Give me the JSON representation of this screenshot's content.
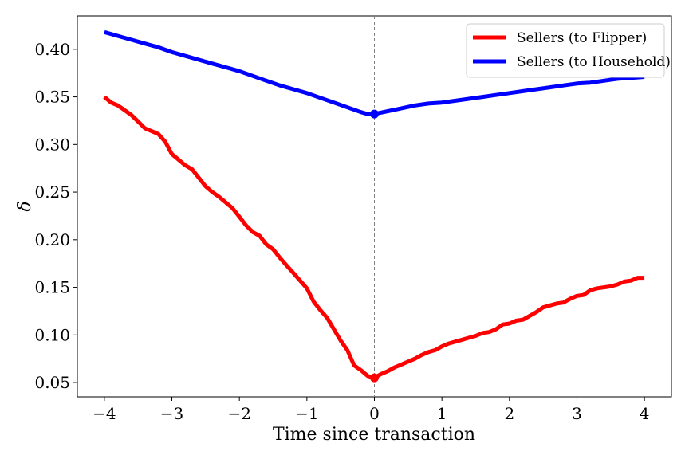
{
  "chart_data": {
    "type": "line",
    "xlabel": "Time since transaction",
    "ylabel": "δ",
    "xlim": [
      -4.4,
      4.4
    ],
    "ylim": [
      0.035,
      0.435
    ],
    "xticks": [
      -4,
      -3,
      -2,
      -1,
      0,
      1,
      2,
      3,
      4
    ],
    "xtick_labels": [
      "−4",
      "−3",
      "−2",
      "−1",
      "0",
      "1",
      "2",
      "3",
      "4"
    ],
    "yticks": [
      0.05,
      0.1,
      0.15,
      0.2,
      0.25,
      0.3,
      0.35,
      0.4
    ],
    "ytick_labels": [
      "0.05",
      "0.10",
      "0.15",
      "0.20",
      "0.25",
      "0.30",
      "0.35",
      "0.40"
    ],
    "vline_x": 0,
    "legend_position": "top-right",
    "series": [
      {
        "name": "Sellers (to Flipper)",
        "color": "#ff0000",
        "marker_x": 0,
        "marker_y": 0.055,
        "x": [
          -4.0,
          -3.9,
          -3.8,
          -3.7,
          -3.6,
          -3.5,
          -3.4,
          -3.3,
          -3.2,
          -3.1,
          -3.0,
          -2.9,
          -2.8,
          -2.7,
          -2.6,
          -2.5,
          -2.4,
          -2.3,
          -2.2,
          -2.1,
          -2.0,
          -1.9,
          -1.8,
          -1.7,
          -1.6,
          -1.5,
          -1.4,
          -1.3,
          -1.2,
          -1.1,
          -1.0,
          -0.9,
          -0.8,
          -0.7,
          -0.6,
          -0.5,
          -0.4,
          -0.3,
          -0.2,
          -0.1,
          0.0,
          0.1,
          0.2,
          0.3,
          0.4,
          0.5,
          0.6,
          0.7,
          0.8,
          0.9,
          1.0,
          1.1,
          1.2,
          1.3,
          1.4,
          1.5,
          1.6,
          1.7,
          1.8,
          1.9,
          2.0,
          2.1,
          2.2,
          2.3,
          2.4,
          2.5,
          2.6,
          2.7,
          2.8,
          2.9,
          3.0,
          3.1,
          3.2,
          3.3,
          3.4,
          3.5,
          3.6,
          3.7,
          3.8,
          3.9,
          4.0
        ],
        "y": [
          0.35,
          0.344,
          0.341,
          0.336,
          0.331,
          0.324,
          0.317,
          0.314,
          0.311,
          0.303,
          0.29,
          0.284,
          0.278,
          0.274,
          0.265,
          0.256,
          0.25,
          0.245,
          0.239,
          0.233,
          0.224,
          0.215,
          0.208,
          0.204,
          0.195,
          0.19,
          0.181,
          0.173,
          0.165,
          0.157,
          0.149,
          0.135,
          0.126,
          0.118,
          0.106,
          0.094,
          0.084,
          0.068,
          0.063,
          0.057,
          0.055,
          0.059,
          0.062,
          0.066,
          0.069,
          0.072,
          0.075,
          0.079,
          0.082,
          0.084,
          0.088,
          0.091,
          0.093,
          0.095,
          0.097,
          0.099,
          0.102,
          0.103,
          0.106,
          0.111,
          0.112,
          0.115,
          0.116,
          0.12,
          0.124,
          0.129,
          0.131,
          0.133,
          0.134,
          0.138,
          0.141,
          0.142,
          0.147,
          0.149,
          0.15,
          0.151,
          0.153,
          0.156,
          0.157,
          0.16,
          0.16
        ]
      },
      {
        "name": "Sellers (to Household)",
        "color": "#0000ff",
        "marker_x": 0,
        "marker_y": 0.332,
        "x": [
          -4.0,
          -3.8,
          -3.6,
          -3.4,
          -3.2,
          -3.0,
          -2.8,
          -2.6,
          -2.4,
          -2.2,
          -2.0,
          -1.8,
          -1.6,
          -1.4,
          -1.2,
          -1.0,
          -0.8,
          -0.6,
          -0.4,
          -0.2,
          -0.1,
          0.0,
          0.2,
          0.4,
          0.6,
          0.8,
          1.0,
          1.2,
          1.4,
          1.6,
          1.8,
          2.0,
          2.2,
          2.4,
          2.6,
          2.8,
          3.0,
          3.2,
          3.4,
          3.6,
          3.8,
          4.0
        ],
        "y": [
          0.418,
          0.414,
          0.41,
          0.406,
          0.402,
          0.397,
          0.393,
          0.389,
          0.385,
          0.381,
          0.377,
          0.372,
          0.367,
          0.362,
          0.358,
          0.354,
          0.349,
          0.344,
          0.339,
          0.334,
          0.332,
          0.332,
          0.335,
          0.338,
          0.341,
          0.343,
          0.344,
          0.346,
          0.348,
          0.35,
          0.352,
          0.354,
          0.356,
          0.358,
          0.36,
          0.362,
          0.364,
          0.365,
          0.367,
          0.369,
          0.37,
          0.371
        ]
      }
    ]
  }
}
